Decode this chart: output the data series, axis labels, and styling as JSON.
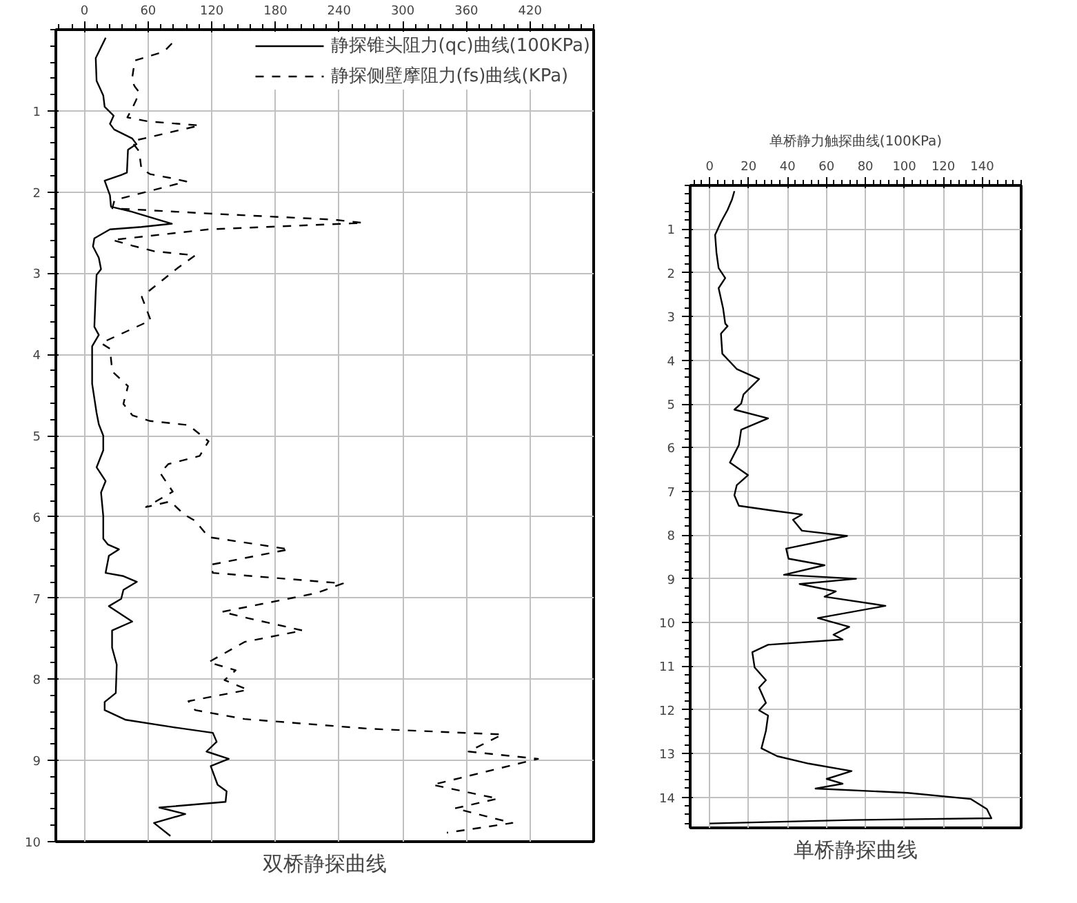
{
  "chart_data": [
    {
      "type": "line",
      "annotations": [
        "双桥静探曲线"
      ],
      "xlim": [
        -27,
        480
      ],
      "ylim": [
        10,
        0
      ],
      "xticks": [
        0,
        60,
        120,
        180,
        240,
        300,
        360,
        420
      ],
      "yticks": [
        1,
        2,
        3,
        4,
        5,
        6,
        7,
        8,
        9,
        10
      ],
      "grid": true,
      "legend": "top right",
      "marker": "none",
      "series": [
        {
          "name": "静探锥头阻力(qc)曲线(100KPa)",
          "color": "#000000",
          "line_style": "solid",
          "x": [
            20,
            10.6,
            11.4,
            17.7,
            19,
            27.5,
            24,
            28,
            45,
            49,
            41,
            40,
            34.6,
            19,
            24,
            25,
            44,
            82.4,
            53.6,
            24,
            9.3,
            8,
            13.5,
            15.6,
            11.4,
            10.6,
            9.3,
            13.5,
            7.2,
            7.2,
            11.4,
            13.5,
            17.7,
            17.7,
            11.4,
            19.9,
            15.6,
            17.7,
            17.7,
            22,
            32.5,
            23,
            19.9,
            36.7,
            49.4,
            36.7,
            34.6,
            23,
            45,
            26,
            26,
            30.4,
            29.5,
            19,
            19,
            38.9,
            83.2,
            121,
            124.6,
            115,
            136,
            119,
            125.5,
            134,
            133,
            70.6,
            95,
            65.5,
            81
          ],
          "values": [
            0.1,
            0.35,
            0.63,
            0.81,
            0.95,
            1.06,
            1.16,
            1.23,
            1.34,
            1.41,
            1.48,
            1.76,
            1.79,
            1.86,
            2.04,
            2.18,
            2.24,
            2.39,
            2.43,
            2.46,
            2.57,
            2.67,
            2.81,
            2.95,
            3.02,
            3.23,
            3.66,
            3.76,
            3.9,
            4.36,
            4.72,
            4.86,
            5.0,
            5.18,
            5.39,
            5.56,
            5.7,
            5.99,
            6.27,
            6.34,
            6.4,
            6.48,
            6.69,
            6.73,
            6.8,
            6.9,
            7.01,
            7.1,
            7.29,
            7.4,
            7.61,
            7.82,
            8.17,
            8.28,
            8.38,
            8.5,
            8.59,
            8.66,
            8.77,
            8.89,
            8.98,
            9.07,
            9.3,
            9.38,
            9.51,
            9.58,
            9.66,
            9.77,
            9.93
          ]
        },
        {
          "name": "静探侧壁摩阻力(fs)曲线(KPa)",
          "color": "#000000",
          "line_style": "dashed",
          "x": [
            82.4,
            75,
            47.4,
            44.6,
            47.4,
            51.5,
            48.6,
            44.6,
            40.4,
            60,
            108.6,
            49.4,
            45.2,
            51.5,
            53.6,
            62,
            82.4,
            96,
            28.3,
            26.2,
            125.5,
            235,
            262.7,
            117,
            26.2,
            45,
            66,
            104.4,
            87.4,
            54,
            62.4,
            15.6,
            24,
            26.2,
            41,
            37.6,
            36.7,
            45.2,
            62,
            98,
            117,
            108.6,
            79,
            71.4,
            83.2,
            58,
            81,
            93.8,
            104.4,
            117,
            163.5,
            193,
            119,
            121,
            243.7,
            218.4,
            129.6,
            155,
            205.7,
            151,
            117,
            142.5,
            132,
            154,
            98,
            104.4,
            151,
            269,
            394,
            362,
            427.6,
            328,
            389.6,
            349.4,
            403.4,
            341.6
          ],
          "values": [
            0.17,
            0.27,
            0.38,
            0.63,
            0.7,
            0.77,
            0.87,
            0.98,
            1.08,
            1.13,
            1.18,
            1.36,
            1.39,
            1.5,
            1.71,
            1.78,
            1.83,
            1.87,
            2.1,
            2.2,
            2.27,
            2.34,
            2.38,
            2.46,
            2.59,
            2.66,
            2.73,
            2.78,
            2.94,
            3.29,
            3.58,
            3.86,
            3.93,
            4.21,
            4.39,
            4.56,
            4.61,
            4.75,
            4.82,
            4.87,
            5.07,
            5.25,
            5.35,
            5.46,
            5.69,
            5.88,
            5.81,
            5.97,
            6.05,
            6.25,
            6.34,
            6.4,
            6.59,
            6.69,
            6.82,
            6.94,
            7.17,
            7.25,
            7.4,
            7.54,
            7.79,
            7.89,
            8.01,
            8.13,
            8.27,
            8.38,
            8.49,
            8.61,
            8.68,
            8.89,
            8.98,
            9.3,
            9.47,
            9.59,
            9.77,
            9.89
          ]
        }
      ]
    },
    {
      "type": "line",
      "title": "单桥静力触探曲线(100KPa)",
      "annotations": [
        "单桥静探曲线"
      ],
      "xlim": [
        -10,
        160
      ],
      "ylim": [
        14.7,
        0
      ],
      "xticks": [
        0,
        20,
        40,
        60,
        80,
        100,
        120,
        140
      ],
      "yticks": [
        1,
        2,
        3,
        4,
        5,
        6,
        7,
        8,
        9,
        10,
        11,
        12,
        13,
        14
      ],
      "grid": true,
      "marker": "none",
      "series": [
        {
          "color": "#000000",
          "line_style": "solid",
          "x": [
            12.7,
            11.5,
            9.2,
            5.8,
            2.8,
            3.5,
            4.6,
            8,
            4.6,
            6.9,
            8,
            9.2,
            5.8,
            6.5,
            13.9,
            25.4,
            17.4,
            16.2,
            12.7,
            30,
            16.2,
            15,
            10.4,
            19.7,
            13.9,
            12.7,
            15,
            32.4,
            47.4,
            42.8,
            47.4,
            70.6,
            39.3,
            40.5,
            59,
            38.2,
            75.2,
            46.2,
            64.8,
            59,
            90.3,
            55.6,
            71.7,
            63.6,
            68.3,
            30,
            21.9,
            23.1,
            28.9,
            25.4,
            28.9,
            25.4,
            30,
            28.9,
            26.6,
            34.7,
            50.9,
            72.9,
            60.1,
            68.3,
            54.4,
            101.8,
            134.2,
            142.4,
            144.7,
            72.9,
            0
          ],
          "values": [
            0.13,
            0.32,
            0.56,
            0.84,
            1.13,
            1.54,
            1.89,
            2.12,
            2.35,
            2.81,
            3.16,
            3.22,
            3.39,
            3.85,
            4.2,
            4.43,
            4.78,
            4.99,
            5.13,
            5.33,
            5.59,
            5.94,
            6.34,
            6.63,
            6.86,
            7.09,
            7.33,
            7.44,
            7.53,
            7.65,
            7.9,
            8.02,
            8.31,
            8.54,
            8.69,
            8.91,
            9.0,
            9.12,
            9.29,
            9.41,
            9.62,
            9.9,
            10.1,
            10.28,
            10.39,
            10.51,
            10.68,
            11.03,
            11.32,
            11.49,
            11.84,
            12.01,
            12.13,
            12.48,
            12.88,
            13.06,
            13.23,
            13.4,
            13.58,
            13.69,
            13.8,
            13.9,
            14.04,
            14.27,
            14.48,
            14.52,
            14.6
          ]
        }
      ]
    }
  ]
}
